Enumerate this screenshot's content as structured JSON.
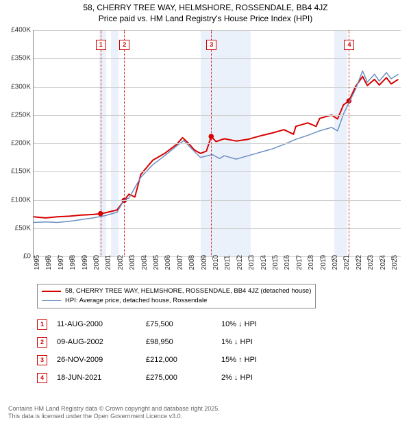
{
  "title": {
    "line1": "58, CHERRY TREE WAY, HELMSHORE, ROSSENDALE, BB4 4JZ",
    "line2": "Price paid vs. HM Land Registry's House Price Index (HPI)",
    "fontsize": 12
  },
  "chart": {
    "type": "line",
    "x_domain": [
      1995,
      2025.8
    ],
    "y_domain": [
      0,
      400000
    ],
    "ylim": [
      0,
      400000
    ],
    "ytick_step": 50000,
    "yticks": [
      {
        "v": 0,
        "label": "£0"
      },
      {
        "v": 50000,
        "label": "£50K"
      },
      {
        "v": 100000,
        "label": "£100K"
      },
      {
        "v": 150000,
        "label": "£150K"
      },
      {
        "v": 200000,
        "label": "£200K"
      },
      {
        "v": 250000,
        "label": "£250K"
      },
      {
        "v": 300000,
        "label": "£300K"
      },
      {
        "v": 350000,
        "label": "£350K"
      },
      {
        "v": 400000,
        "label": "£400K"
      }
    ],
    "xticks": [
      {
        "v": 1995,
        "label": "1995"
      },
      {
        "v": 1996,
        "label": "1996"
      },
      {
        "v": 1997,
        "label": "1997"
      },
      {
        "v": 1998,
        "label": "1998"
      },
      {
        "v": 1999,
        "label": "1999"
      },
      {
        "v": 2000,
        "label": "2000"
      },
      {
        "v": 2001,
        "label": "2001"
      },
      {
        "v": 2002,
        "label": "2002"
      },
      {
        "v": 2003,
        "label": "2003"
      },
      {
        "v": 2004,
        "label": "2004"
      },
      {
        "v": 2005,
        "label": "2005"
      },
      {
        "v": 2006,
        "label": "2006"
      },
      {
        "v": 2007,
        "label": "2007"
      },
      {
        "v": 2008,
        "label": "2008"
      },
      {
        "v": 2009,
        "label": "2009"
      },
      {
        "v": 2010,
        "label": "2010"
      },
      {
        "v": 2011,
        "label": "2011"
      },
      {
        "v": 2012,
        "label": "2012"
      },
      {
        "v": 2013,
        "label": "2013"
      },
      {
        "v": 2014,
        "label": "2014"
      },
      {
        "v": 2015,
        "label": "2015"
      },
      {
        "v": 2016,
        "label": "2016"
      },
      {
        "v": 2017,
        "label": "2017"
      },
      {
        "v": 2018,
        "label": "2018"
      },
      {
        "v": 2019,
        "label": "2019"
      },
      {
        "v": 2020,
        "label": "2020"
      },
      {
        "v": 2021,
        "label": "2021"
      },
      {
        "v": 2022,
        "label": "2022"
      },
      {
        "v": 2023,
        "label": "2023"
      },
      {
        "v": 2024,
        "label": "2024"
      },
      {
        "v": 2025,
        "label": "2025"
      }
    ],
    "background_color": "#ffffff",
    "grid_color": "#d0d0d0",
    "recession_bands": [
      {
        "start": 2000.5,
        "end": 2001.1
      },
      {
        "start": 2001.5,
        "end": 2002.1
      },
      {
        "start": 2009.0,
        "end": 2009.5
      },
      {
        "start": 2009.5,
        "end": 2013.2
      },
      {
        "start": 2020.2,
        "end": 2021.3
      }
    ],
    "recession_color": "rgba(100,150,220,0.13)",
    "markers": [
      {
        "n": "1",
        "x": 2000.62
      },
      {
        "n": "2",
        "x": 2002.6
      },
      {
        "n": "3",
        "x": 2009.9
      },
      {
        "n": "4",
        "x": 2021.46
      }
    ],
    "marker_line_color": "#cc0000",
    "series": [
      {
        "name": "property",
        "label": "58, CHERRY TREE WAY, HELMSHORE, ROSSENDALE, BB4 4JZ (detached house)",
        "color": "#d90000",
        "line_width": 2,
        "data": [
          [
            1995,
            70000
          ],
          [
            1996,
            68000
          ],
          [
            1997,
            70000
          ],
          [
            1998,
            71000
          ],
          [
            1999,
            73000
          ],
          [
            2000,
            74000
          ],
          [
            2000.62,
            75500
          ],
          [
            2001,
            77000
          ],
          [
            2002,
            82000
          ],
          [
            2002.6,
            98950
          ],
          [
            2003,
            110000
          ],
          [
            2003.5,
            105000
          ],
          [
            2004,
            145000
          ],
          [
            2005,
            170000
          ],
          [
            2006,
            182000
          ],
          [
            2007,
            198000
          ],
          [
            2007.5,
            210000
          ],
          [
            2008,
            200000
          ],
          [
            2008.5,
            188000
          ],
          [
            2009,
            182000
          ],
          [
            2009.5,
            186000
          ],
          [
            2009.9,
            212000
          ],
          [
            2010.3,
            203000
          ],
          [
            2011,
            208000
          ],
          [
            2012,
            204000
          ],
          [
            2013,
            207000
          ],
          [
            2014,
            213000
          ],
          [
            2015,
            218000
          ],
          [
            2016,
            224000
          ],
          [
            2016.8,
            216000
          ],
          [
            2017,
            230000
          ],
          [
            2018,
            236000
          ],
          [
            2018.7,
            230000
          ],
          [
            2019,
            244000
          ],
          [
            2020,
            250000
          ],
          [
            2020.5,
            243000
          ],
          [
            2021,
            268000
          ],
          [
            2021.46,
            275000
          ],
          [
            2022,
            300000
          ],
          [
            2022.6,
            318000
          ],
          [
            2023,
            302000
          ],
          [
            2023.6,
            313000
          ],
          [
            2024,
            303000
          ],
          [
            2024.6,
            316000
          ],
          [
            2025,
            305000
          ],
          [
            2025.6,
            313000
          ]
        ],
        "sale_points": [
          {
            "x": 2000.62,
            "y": 75500
          },
          {
            "x": 2002.6,
            "y": 98950
          },
          {
            "x": 2009.9,
            "y": 212000
          },
          {
            "x": 2021.46,
            "y": 275000
          }
        ],
        "point_color": "#d90000",
        "point_radius": 3.8
      },
      {
        "name": "hpi",
        "label": "HPI: Average price, detached house, Rossendale",
        "color": "#6a8fc3",
        "line_width": 1.5,
        "data": [
          [
            1995,
            60000
          ],
          [
            1996,
            61000
          ],
          [
            1997,
            60000
          ],
          [
            1998,
            62000
          ],
          [
            1999,
            65000
          ],
          [
            2000,
            68000
          ],
          [
            2001,
            72000
          ],
          [
            2002,
            78000
          ],
          [
            2002.6,
            100000
          ],
          [
            2003,
            103000
          ],
          [
            2004,
            140000
          ],
          [
            2005,
            162000
          ],
          [
            2006,
            178000
          ],
          [
            2007,
            195000
          ],
          [
            2007.6,
            205000
          ],
          [
            2008,
            196000
          ],
          [
            2009,
            175000
          ],
          [
            2010,
            180000
          ],
          [
            2010.6,
            173000
          ],
          [
            2011,
            178000
          ],
          [
            2012,
            172000
          ],
          [
            2013,
            178000
          ],
          [
            2014,
            184000
          ],
          [
            2015,
            190000
          ],
          [
            2016,
            198000
          ],
          [
            2017,
            207000
          ],
          [
            2018,
            214000
          ],
          [
            2019,
            222000
          ],
          [
            2020,
            228000
          ],
          [
            2020.5,
            222000
          ],
          [
            2021,
            252000
          ],
          [
            2022,
            295000
          ],
          [
            2022.6,
            328000
          ],
          [
            2023,
            308000
          ],
          [
            2023.6,
            322000
          ],
          [
            2024,
            310000
          ],
          [
            2024.6,
            325000
          ],
          [
            2025,
            314000
          ],
          [
            2025.6,
            322000
          ]
        ]
      }
    ]
  },
  "legend": {
    "rows": [
      {
        "color": "#d90000",
        "width": 2,
        "text": "58, CHERRY TREE WAY, HELMSHORE, ROSSENDALE, BB4 4JZ (detached house)"
      },
      {
        "color": "#6a8fc3",
        "width": 1.5,
        "text": "HPI: Average price, detached house, Rossendale"
      }
    ]
  },
  "sales": [
    {
      "n": "1",
      "date": "11-AUG-2000",
      "price": "£75,500",
      "delta": "10% ↓ HPI"
    },
    {
      "n": "2",
      "date": "09-AUG-2002",
      "price": "£98,950",
      "delta": "1% ↓ HPI"
    },
    {
      "n": "3",
      "date": "26-NOV-2009",
      "price": "£212,000",
      "delta": "15% ↑ HPI"
    },
    {
      "n": "4",
      "date": "18-JUN-2021",
      "price": "£275,000",
      "delta": "2% ↓ HPI"
    }
  ],
  "footer": {
    "line1": "Contains HM Land Registry data © Crown copyright and database right 2025.",
    "line2": "This data is licensed under the Open Government Licence v3.0."
  }
}
